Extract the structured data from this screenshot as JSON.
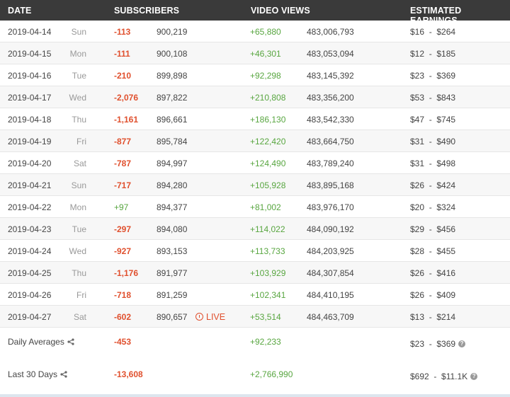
{
  "headers": {
    "date": "DATE",
    "subscribers": "SUBSCRIBERS",
    "video_views": "VIDEO VIEWS",
    "earnings": "ESTIMATED EARNINGS"
  },
  "rows": [
    {
      "date": "2019-04-14",
      "day": "Sun",
      "sub_delta": "-113",
      "sub_total": "900,219",
      "view_delta": "+65,880",
      "view_total": "483,006,793",
      "earnings": "$16  -  $264"
    },
    {
      "date": "2019-04-15",
      "day": "Mon",
      "sub_delta": "-111",
      "sub_total": "900,108",
      "view_delta": "+46,301",
      "view_total": "483,053,094",
      "earnings": "$12  -  $185"
    },
    {
      "date": "2019-04-16",
      "day": "Tue",
      "sub_delta": "-210",
      "sub_total": "899,898",
      "view_delta": "+92,298",
      "view_total": "483,145,392",
      "earnings": "$23  -  $369"
    },
    {
      "date": "2019-04-17",
      "day": "Wed",
      "sub_delta": "-2,076",
      "sub_total": "897,822",
      "view_delta": "+210,808",
      "view_total": "483,356,200",
      "earnings": "$53  -  $843"
    },
    {
      "date": "2019-04-18",
      "day": "Thu",
      "sub_delta": "-1,161",
      "sub_total": "896,661",
      "view_delta": "+186,130",
      "view_total": "483,542,330",
      "earnings": "$47  -  $745"
    },
    {
      "date": "2019-04-19",
      "day": "Fri",
      "sub_delta": "-877",
      "sub_total": "895,784",
      "view_delta": "+122,420",
      "view_total": "483,664,750",
      "earnings": "$31  -  $490"
    },
    {
      "date": "2019-04-20",
      "day": "Sat",
      "sub_delta": "-787",
      "sub_total": "894,997",
      "view_delta": "+124,490",
      "view_total": "483,789,240",
      "earnings": "$31  -  $498"
    },
    {
      "date": "2019-04-21",
      "day": "Sun",
      "sub_delta": "-717",
      "sub_total": "894,280",
      "view_delta": "+105,928",
      "view_total": "483,895,168",
      "earnings": "$26  -  $424"
    },
    {
      "date": "2019-04-22",
      "day": "Mon",
      "sub_delta": "+97",
      "sub_total": "894,377",
      "view_delta": "+81,002",
      "view_total": "483,976,170",
      "earnings": "$20  -  $324"
    },
    {
      "date": "2019-04-23",
      "day": "Tue",
      "sub_delta": "-297",
      "sub_total": "894,080",
      "view_delta": "+114,022",
      "view_total": "484,090,192",
      "earnings": "$29  -  $456"
    },
    {
      "date": "2019-04-24",
      "day": "Wed",
      "sub_delta": "-927",
      "sub_total": "893,153",
      "view_delta": "+113,733",
      "view_total": "484,203,925",
      "earnings": "$28  -  $455"
    },
    {
      "date": "2019-04-25",
      "day": "Thu",
      "sub_delta": "-1,176",
      "sub_total": "891,977",
      "view_delta": "+103,929",
      "view_total": "484,307,854",
      "earnings": "$26  -  $416"
    },
    {
      "date": "2019-04-26",
      "day": "Fri",
      "sub_delta": "-718",
      "sub_total": "891,259",
      "view_delta": "+102,341",
      "view_total": "484,410,195",
      "earnings": "$26  -  $409"
    },
    {
      "date": "2019-04-27",
      "day": "Sat",
      "sub_delta": "-602",
      "sub_total": "890,657",
      "view_delta": "+53,514",
      "view_total": "484,463,709",
      "earnings": "$13  -  $214",
      "live": "LIVE"
    }
  ],
  "daily_averages": {
    "label": "Daily Averages",
    "sub_delta": "-453",
    "view_delta": "+92,233",
    "earnings": "$23  -  $369"
  },
  "last_30_days": {
    "label": "Last 30 Days",
    "sub_delta": "-13,608",
    "view_delta": "+2,766,990",
    "earnings": "$692  -  $11.1K"
  },
  "icons": {
    "share": "share-icon",
    "help": "help-icon",
    "live": "live-clock-icon"
  },
  "colors": {
    "negative": "#e0502e",
    "positive": "#58a640",
    "header_bg": "#3a3a3a"
  }
}
